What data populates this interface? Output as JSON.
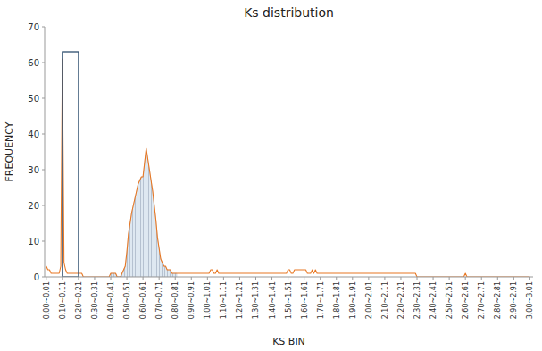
{
  "chart_data": {
    "type": "line",
    "title": "Ks distribution",
    "x_label": "KS BIN",
    "y_label": "FREQUENCY",
    "color": "#E87722",
    "grid": false,
    "xlim": [
      -0.01,
      3.02
    ],
    "ylim": [
      0,
      70
    ],
    "yticks": [
      0,
      10,
      20,
      30,
      40,
      50,
      60,
      70
    ],
    "xticks": [
      {
        "value": 0.0,
        "label": "0.00~0.01"
      },
      {
        "value": 0.1,
        "label": "0.10~0.11"
      },
      {
        "value": 0.2,
        "label": "0.20~0.21"
      },
      {
        "value": 0.3,
        "label": "0.30~0.31"
      },
      {
        "value": 0.4,
        "label": "0.40~0.41"
      },
      {
        "value": 0.5,
        "label": "0.50~0.51"
      },
      {
        "value": 0.6,
        "label": "0.60~0.61"
      },
      {
        "value": 0.7,
        "label": "0.70~0.71"
      },
      {
        "value": 0.8,
        "label": "0.80~0.81"
      },
      {
        "value": 0.9,
        "label": "0.90~0.91"
      },
      {
        "value": 1.0,
        "label": "1.00~1.01"
      },
      {
        "value": 1.1,
        "label": "1.10~1.11"
      },
      {
        "value": 1.2,
        "label": "1.20~1.21"
      },
      {
        "value": 1.3,
        "label": "1.30~1.31"
      },
      {
        "value": 1.4,
        "label": "1.40~1.41"
      },
      {
        "value": 1.5,
        "label": "1.50~1.51"
      },
      {
        "value": 1.6,
        "label": "1.60~1.61"
      },
      {
        "value": 1.7,
        "label": "1.70~1.71"
      },
      {
        "value": 1.8,
        "label": "1.80~1.81"
      },
      {
        "value": 1.9,
        "label": "1.90~1.91"
      },
      {
        "value": 2.0,
        "label": "2.00~2.01"
      },
      {
        "value": 2.1,
        "label": "2.10~2.11"
      },
      {
        "value": 2.2,
        "label": "2.20~2.21"
      },
      {
        "value": 2.3,
        "label": "2.30~2.31"
      },
      {
        "value": 2.4,
        "label": "2.40~2.41"
      },
      {
        "value": 2.5,
        "label": "2.50~2.51"
      },
      {
        "value": 2.6,
        "label": "2.60~2.61"
      },
      {
        "value": 2.7,
        "label": "2.70~2.71"
      },
      {
        "value": 2.8,
        "label": "2.80~2.81"
      },
      {
        "value": 2.9,
        "label": "2.90~2.91"
      },
      {
        "value": 3.0,
        "label": "3.00~3.01"
      }
    ],
    "shade": {
      "xmin": 0.4,
      "xmax": 0.81,
      "color": "#c8d8e8"
    },
    "box": {
      "x": 0.1,
      "width": 0.1,
      "ymin": 0,
      "ymax": 63,
      "color": "#2F4F6F"
    },
    "x": [
      0.0,
      0.01,
      0.02,
      0.03,
      0.04,
      0.05,
      0.06,
      0.07,
      0.08,
      0.09,
      0.1,
      0.11,
      0.12,
      0.13,
      0.14,
      0.15,
      0.16,
      0.17,
      0.18,
      0.19,
      0.2,
      0.21,
      0.22,
      0.23,
      0.24,
      0.25,
      0.26,
      0.27,
      0.28,
      0.29,
      0.3,
      0.31,
      0.32,
      0.33,
      0.34,
      0.35,
      0.36,
      0.37,
      0.38,
      0.39,
      0.4,
      0.41,
      0.42,
      0.43,
      0.44,
      0.45,
      0.46,
      0.47,
      0.48,
      0.49,
      0.5,
      0.51,
      0.52,
      0.53,
      0.54,
      0.55,
      0.56,
      0.57,
      0.58,
      0.59,
      0.6,
      0.61,
      0.62,
      0.63,
      0.64,
      0.65,
      0.66,
      0.67,
      0.68,
      0.69,
      0.7,
      0.71,
      0.72,
      0.73,
      0.74,
      0.75,
      0.76,
      0.77,
      0.78,
      0.79,
      0.8,
      0.81,
      0.82,
      0.83,
      0.84,
      0.85,
      0.86,
      0.87,
      0.88,
      0.89,
      0.9,
      0.91,
      0.92,
      0.93,
      0.94,
      0.95,
      0.96,
      0.97,
      0.98,
      0.99,
      1.0,
      1.01,
      1.02,
      1.03,
      1.04,
      1.05,
      1.06,
      1.07,
      1.08,
      1.09,
      1.1,
      1.11,
      1.12,
      1.13,
      1.14,
      1.15,
      1.16,
      1.17,
      1.18,
      1.19,
      1.2,
      1.21,
      1.22,
      1.23,
      1.24,
      1.25,
      1.26,
      1.27,
      1.28,
      1.29,
      1.3,
      1.31,
      1.32,
      1.33,
      1.34,
      1.35,
      1.36,
      1.37,
      1.38,
      1.39,
      1.4,
      1.41,
      1.42,
      1.43,
      1.44,
      1.45,
      1.46,
      1.47,
      1.48,
      1.49,
      1.5,
      1.51,
      1.52,
      1.53,
      1.54,
      1.55,
      1.56,
      1.57,
      1.58,
      1.59,
      1.6,
      1.61,
      1.62,
      1.63,
      1.64,
      1.65,
      1.66,
      1.67,
      1.68,
      1.69,
      1.7,
      1.71,
      1.72,
      1.73,
      1.74,
      1.75,
      1.76,
      1.77,
      1.78,
      1.79,
      1.8,
      1.81,
      1.82,
      1.83,
      1.84,
      1.85,
      1.86,
      1.87,
      1.88,
      1.89,
      1.9,
      1.91,
      1.92,
      1.93,
      1.94,
      1.95,
      1.96,
      1.97,
      1.98,
      1.99,
      2.0,
      2.01,
      2.02,
      2.03,
      2.04,
      2.05,
      2.06,
      2.07,
      2.08,
      2.09,
      2.1,
      2.11,
      2.12,
      2.13,
      2.14,
      2.15,
      2.16,
      2.17,
      2.18,
      2.19,
      2.2,
      2.21,
      2.22,
      2.23,
      2.24,
      2.25,
      2.26,
      2.27,
      2.28,
      2.29,
      2.3,
      2.31,
      2.32,
      2.33,
      2.34,
      2.35,
      2.36,
      2.37,
      2.38,
      2.39,
      2.4,
      2.41,
      2.42,
      2.43,
      2.44,
      2.45,
      2.46,
      2.47,
      2.48,
      2.49,
      2.5,
      2.51,
      2.52,
      2.53,
      2.54,
      2.55,
      2.56,
      2.57,
      2.58,
      2.59,
      2.6,
      2.61,
      2.62,
      2.63,
      2.64,
      2.65,
      2.66,
      2.67,
      2.68,
      2.69,
      2.7,
      2.71,
      2.72,
      2.73,
      2.74,
      2.75,
      2.76,
      2.77,
      2.78,
      2.79,
      2.8,
      2.81,
      2.82,
      2.83,
      2.84,
      2.85,
      2.86,
      2.87,
      2.88,
      2.89,
      2.9,
      2.91,
      2.92,
      2.93,
      2.94,
      2.95,
      2.96,
      2.97,
      2.98,
      2.99,
      3.0
    ],
    "values": [
      3,
      2,
      2,
      1,
      1,
      1,
      1,
      1,
      1,
      3,
      61,
      4,
      2,
      1,
      1,
      1,
      1,
      1,
      1,
      1,
      1,
      1,
      1,
      0,
      0,
      0,
      0,
      0,
      0,
      0,
      0,
      0,
      0,
      0,
      0,
      0,
      0,
      0,
      0,
      0,
      1,
      1,
      1,
      1,
      0,
      0,
      0,
      1,
      2,
      3,
      7,
      12,
      15,
      18,
      20,
      22,
      24,
      26,
      27,
      28,
      28,
      32,
      36,
      33,
      30,
      27,
      24,
      20,
      16,
      11,
      8,
      5,
      4,
      3,
      3,
      2,
      2,
      2,
      1,
      1,
      1,
      1,
      1,
      1,
      1,
      1,
      1,
      1,
      1,
      1,
      1,
      1,
      1,
      1,
      1,
      1,
      1,
      1,
      1,
      1,
      1,
      1,
      2,
      2,
      1,
      1,
      2,
      1,
      1,
      1,
      1,
      1,
      1,
      1,
      1,
      1,
      1,
      1,
      1,
      1,
      1,
      1,
      1,
      1,
      1,
      1,
      1,
      1,
      1,
      1,
      1,
      1,
      1,
      1,
      1,
      1,
      1,
      1,
      1,
      1,
      1,
      1,
      1,
      1,
      1,
      1,
      1,
      1,
      1,
      1,
      2,
      2,
      1,
      1,
      2,
      2,
      2,
      2,
      2,
      2,
      2,
      2,
      1,
      1,
      1,
      2,
      1,
      2,
      1,
      1,
      1,
      1,
      1,
      1,
      1,
      1,
      1,
      1,
      1,
      1,
      1,
      1,
      1,
      1,
      1,
      1,
      1,
      1,
      1,
      1,
      1,
      1,
      1,
      1,
      1,
      1,
      1,
      1,
      1,
      1,
      1,
      1,
      1,
      1,
      1,
      1,
      1,
      1,
      1,
      1,
      1,
      1,
      1,
      1,
      1,
      1,
      1,
      1,
      1,
      1,
      1,
      1,
      1,
      1,
      1,
      1,
      1,
      1,
      1,
      1,
      0,
      0,
      0,
      0,
      0,
      0,
      0,
      0,
      0,
      0,
      0,
      0,
      0,
      0,
      0,
      0,
      0,
      0,
      0,
      0,
      0,
      0,
      0,
      0,
      0,
      0,
      0,
      0,
      0,
      0,
      1,
      0,
      0,
      0,
      0,
      0,
      0,
      0,
      0,
      0,
      0,
      0,
      0,
      0,
      0,
      0,
      0,
      0,
      0,
      0,
      0,
      0,
      0,
      0,
      0,
      0,
      0,
      0,
      0,
      0,
      0,
      0,
      0,
      0,
      0,
      0,
      0,
      0,
      0,
      0,
      0
    ]
  }
}
